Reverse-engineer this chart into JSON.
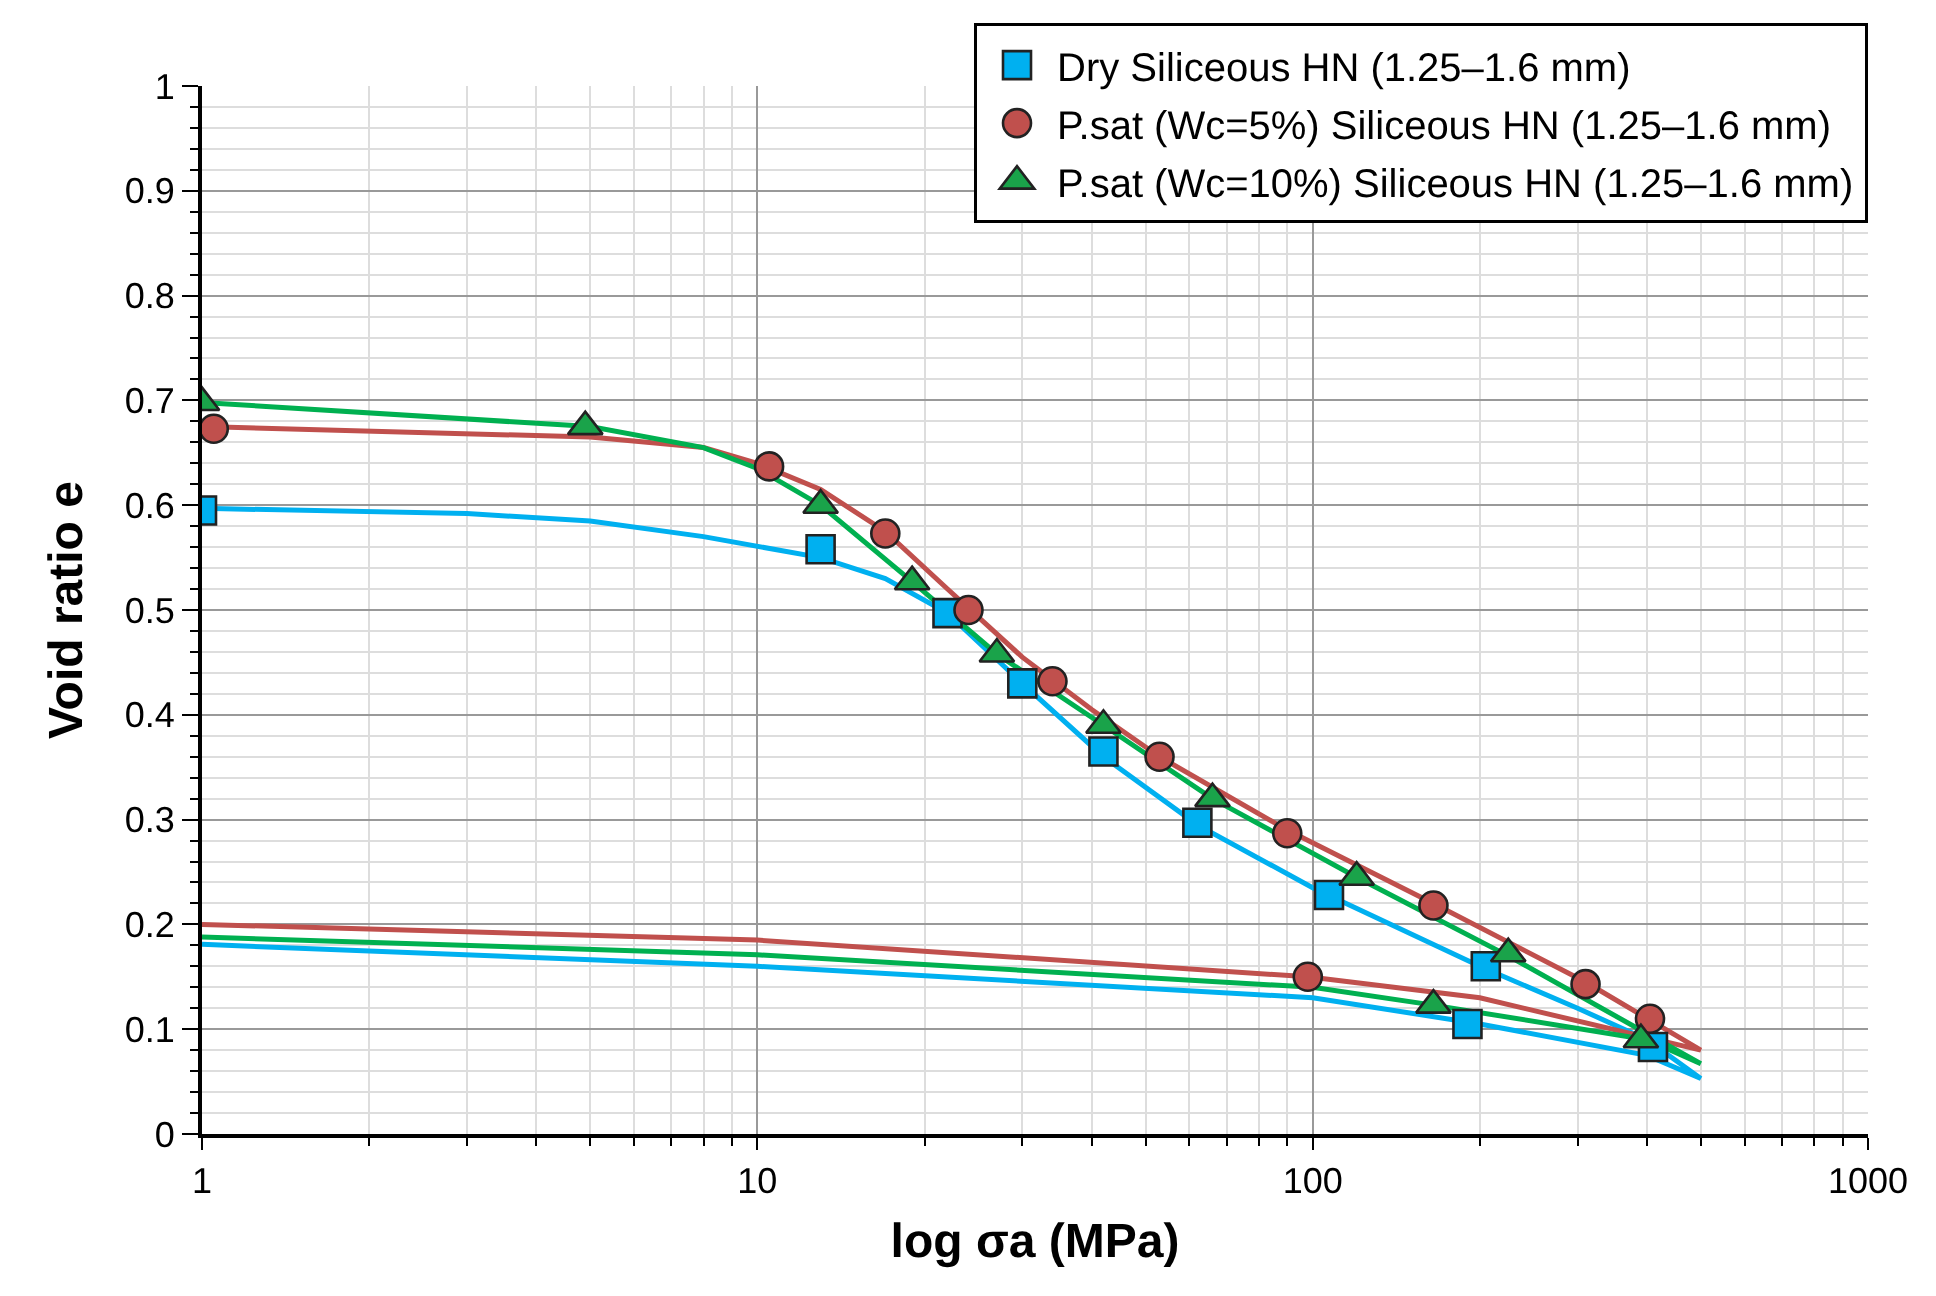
{
  "chart_data": {
    "type": "line",
    "xlabel": "log σa (MPa)",
    "ylabel": "Void ratio e",
    "log": "x",
    "xlim": [
      1,
      1000
    ],
    "xticks": [
      1,
      10,
      100,
      1000
    ],
    "ylim": [
      0,
      1
    ],
    "yticks": [
      0,
      0.1,
      0.2,
      0.3,
      0.4,
      0.5,
      0.6,
      0.7,
      0.8,
      0.9,
      1
    ],
    "grid": true,
    "legend": "top right",
    "line_style": "solid",
    "marker": "none",
    "series": [
      {
        "color": "#00b0f0",
        "x": [
          1,
          3,
          5,
          8,
          13,
          17,
          22,
          30,
          42,
          62,
          100,
          200,
          300,
          400,
          500,
          400,
          200,
          100,
          10,
          1
        ],
        "values": [
          0.597,
          0.592,
          0.585,
          0.57,
          0.55,
          0.53,
          0.497,
          0.43,
          0.36,
          0.295,
          0.235,
          0.16,
          0.12,
          0.09,
          0.053,
          0.075,
          0.105,
          0.13,
          0.16,
          0.181
        ]
      },
      {
        "color": "#c0504d",
        "x": [
          1,
          5,
          8,
          10,
          13,
          17,
          22,
          30,
          40,
          53,
          90,
          165,
          310,
          500,
          200,
          98,
          10,
          1
        ],
        "values": [
          0.675,
          0.665,
          0.655,
          0.64,
          0.615,
          0.575,
          0.52,
          0.455,
          0.405,
          0.36,
          0.29,
          0.22,
          0.145,
          0.08,
          0.13,
          0.15,
          0.185,
          0.2
        ]
      },
      {
        "color": "#00b050",
        "x": [
          1,
          5,
          8,
          10,
          13,
          19,
          27,
          42,
          66,
          120,
          225,
          500,
          400,
          165,
          100,
          10,
          1
        ],
        "values": [
          0.698,
          0.675,
          0.655,
          0.635,
          0.6,
          0.527,
          0.458,
          0.39,
          0.32,
          0.245,
          0.17,
          0.067,
          0.09,
          0.123,
          0.14,
          0.171,
          0.188
        ]
      },
      {
        "type": "scatter",
        "marker": "square",
        "name": "Dry Siliceous HN (1.25–1.6 mm)",
        "color": "#00b0f0",
        "x": [
          1,
          13,
          22,
          30,
          42,
          62,
          107,
          205,
          190,
          410
        ],
        "values": [
          0.595,
          0.558,
          0.497,
          0.43,
          0.365,
          0.297,
          0.228,
          0.16,
          0.105,
          0.083
        ]
      },
      {
        "type": "scatter",
        "marker": "circle",
        "name": "P.sat (Wc=5%) Siliceous HN (1.25–1.6 mm)",
        "color": "#c0504d",
        "x": [
          1.05,
          10.5,
          17,
          24,
          34,
          53,
          90,
          165,
          310,
          405,
          98
        ],
        "values": [
          0.673,
          0.637,
          0.573,
          0.5,
          0.432,
          0.36,
          0.287,
          0.218,
          0.143,
          0.11,
          0.15
        ]
      },
      {
        "type": "scatter",
        "marker": "triangle",
        "name": "P.sat (Wc=10%) Siliceous HN (1.25–1.6 mm)",
        "color": "#1aa34a",
        "x": [
          1,
          4.9,
          13,
          19,
          27,
          42,
          66,
          120,
          225,
          165,
          390
        ],
        "values": [
          0.698,
          0.675,
          0.6,
          0.527,
          0.458,
          0.39,
          0.32,
          0.245,
          0.172,
          0.123,
          0.09
        ]
      }
    ]
  }
}
